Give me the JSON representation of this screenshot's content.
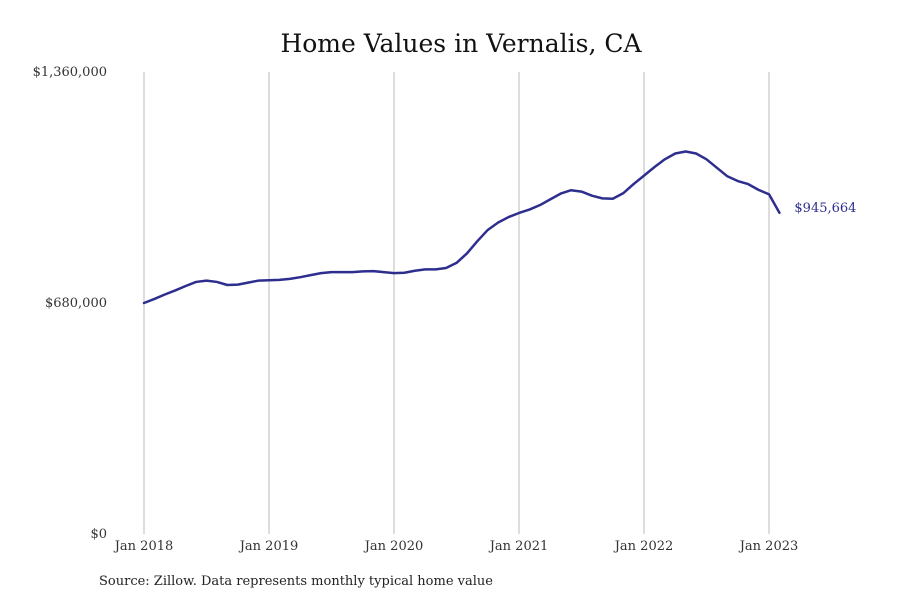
{
  "chart_data": {
    "type": "line",
    "title": "Home Values in Vernalis, CA",
    "xlabel": "",
    "ylabel": "",
    "ylim": [
      0,
      1360000
    ],
    "y_ticks": [
      0,
      680000,
      1360000
    ],
    "y_tick_labels": [
      "$0",
      "$680,000",
      "$1,360,000"
    ],
    "x_ticks": [
      "2018-01",
      "2019-01",
      "2020-01",
      "2021-01",
      "2022-01",
      "2023-01"
    ],
    "x_tick_labels": [
      "Jan 2018",
      "Jan 2019",
      "Jan 2020",
      "Jan 2021",
      "Jan 2022",
      "Jan 2023"
    ],
    "grid": "vertical",
    "line_color": "#2e2e8f",
    "grid_color": "#bbbbbb",
    "end_label": "$945,664",
    "series": [
      {
        "x": [
          "2018-01",
          "2018-02",
          "2018-03",
          "2018-04",
          "2018-05",
          "2018-06",
          "2018-07",
          "2018-08",
          "2018-09",
          "2018-10",
          "2018-11",
          "2018-12",
          "2019-01",
          "2019-02",
          "2019-03",
          "2019-04",
          "2019-05",
          "2019-06",
          "2019-07",
          "2019-08",
          "2019-09",
          "2019-10",
          "2019-11",
          "2019-12",
          "2020-01",
          "2020-02",
          "2020-03",
          "2020-04",
          "2020-05",
          "2020-06",
          "2020-07",
          "2020-08",
          "2020-09",
          "2020-10",
          "2020-11",
          "2020-12",
          "2021-01",
          "2021-02",
          "2021-03",
          "2021-04",
          "2021-05",
          "2021-06",
          "2021-07",
          "2021-08",
          "2021-09",
          "2021-10",
          "2021-11",
          "2021-12",
          "2022-01",
          "2022-02",
          "2022-03",
          "2022-04",
          "2022-05",
          "2022-06",
          "2022-07",
          "2022-08",
          "2022-09",
          "2022-10",
          "2022-11",
          "2022-12",
          "2023-01",
          "2023-02"
        ],
        "values": [
          680000,
          692000,
          705000,
          717000,
          730000,
          742000,
          746000,
          742000,
          733000,
          734000,
          740000,
          746000,
          747000,
          748000,
          751000,
          756000,
          762000,
          768000,
          771000,
          771000,
          771000,
          773000,
          774000,
          771000,
          768000,
          769000,
          775000,
          779000,
          779000,
          783000,
          798000,
          826000,
          862000,
          895000,
          917000,
          933000,
          945000,
          955000,
          968000,
          985000,
          1002000,
          1012000,
          1008000,
          996000,
          988000,
          987000,
          1003000,
          1030000,
          1055000,
          1080000,
          1103000,
          1120000,
          1126000,
          1120000,
          1103000,
          1078000,
          1053000,
          1039000,
          1030000,
          1013000,
          1000000,
          945664
        ]
      }
    ]
  },
  "source_note": "Source: Zillow. Data represents monthly typical home value"
}
